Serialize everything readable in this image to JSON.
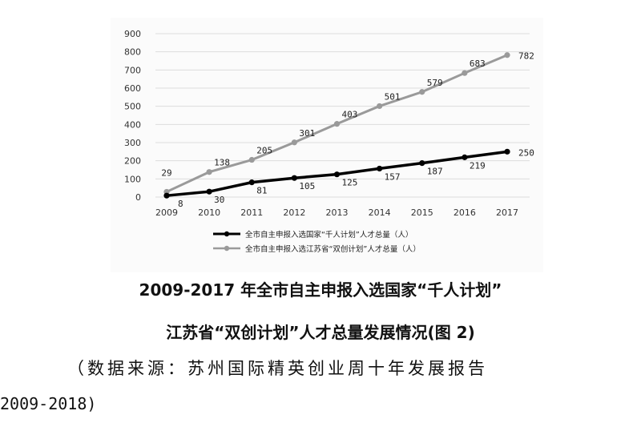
{
  "figure": {
    "caption_line1": "2009-2017 年全市自主申报入选国家“千人计划”",
    "caption_line2": "江苏省“双创计划”人才总量发展情况(图 2)",
    "source_line1": "（数据来源：苏州国际精英创业周十年发展报告",
    "source_line2": "2009-2018)"
  },
  "chart_data": {
    "type": "line",
    "x": [
      "2009",
      "2010",
      "2011",
      "2012",
      "2013",
      "2014",
      "2015",
      "2016",
      "2017"
    ],
    "ylim": [
      0,
      900
    ],
    "yticks": [
      0,
      100,
      200,
      300,
      400,
      500,
      600,
      700,
      800,
      900
    ],
    "grid": true,
    "legend_position": "bottom",
    "series": [
      {
        "name": "全市自主申报入选国家“千人计划”人才总量（人）",
        "color": "#000000",
        "values": [
          8,
          30,
          81,
          105,
          125,
          157,
          187,
          219,
          250
        ],
        "labels": [
          "8",
          "30",
          "81",
          "105",
          "125",
          "157",
          "187",
          "219",
          "250"
        ]
      },
      {
        "name": "全市自主申报入选江苏省“双创计划”人才总量（人）",
        "color": "#9a9a9a",
        "values": [
          29,
          138,
          205,
          301,
          403,
          501,
          579,
          683,
          782
        ],
        "labels": [
          "29",
          "138",
          "205",
          "301",
          "403",
          "501",
          "579",
          "683",
          "782"
        ]
      }
    ]
  }
}
